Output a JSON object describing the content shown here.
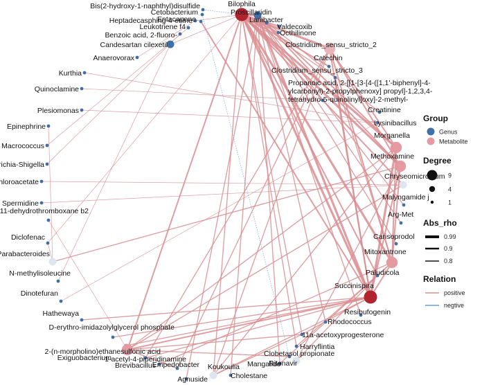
{
  "colors": {
    "genus": "#3f6fa6",
    "metabolite": "#e49aa0",
    "positive": "#d98d90",
    "negative": "#6a9bd0",
    "hub_dark": "#b0242e",
    "hub_light": "#dde5f0",
    "mid_pink": "#e8b6b8"
  },
  "legend": {
    "group_title": "Group",
    "group_items": [
      "Genus",
      "Metabolite"
    ],
    "degree_title": "Degree",
    "degree_items": [
      "9",
      "4",
      "1"
    ],
    "absrho_title": "Abs_rho",
    "absrho_items": [
      "0.99",
      "0.9",
      "0.8"
    ],
    "relation_title": "Relation",
    "relation_items": [
      "positive",
      "negtive"
    ]
  },
  "nodes": [
    {
      "id": "bilophila",
      "label": "Bilophila",
      "group": "Genus",
      "degree": 9,
      "shade": "hub_dark"
    },
    {
      "id": "bis2",
      "label": "Bis(2-hydroxy-1-naphthyl)disulfide",
      "group": "Metabolite",
      "degree": 1
    },
    {
      "id": "cetobacterium",
      "label": "Cetobacterium",
      "group": "Genus",
      "degree": 1
    },
    {
      "id": "proscillaridin",
      "label": "Proscillaridin",
      "group": "Metabolite",
      "degree": 2
    },
    {
      "id": "entacapone",
      "label": "Entacapone",
      "group": "Metabolite",
      "degree": 1
    },
    {
      "id": "heptadec",
      "label": "Heptadecasphing-4-enine",
      "group": "Metabolite",
      "degree": 1
    },
    {
      "id": "lariibacter",
      "label": "Lariibacter",
      "group": "Genus",
      "degree": 1
    },
    {
      "id": "leukotriene",
      "label": "Leukotriene f4",
      "group": "Metabolite",
      "degree": 1
    },
    {
      "id": "valdecoxib",
      "label": "Valdecoxib",
      "group": "Metabolite",
      "degree": 1
    },
    {
      "id": "benzoic",
      "label": "Benzoic acid, 2-fluoro-",
      "group": "Metabolite",
      "degree": 1
    },
    {
      "id": "octhilinone",
      "label": "Octhilinone",
      "group": "Metabolite",
      "degree": 1
    },
    {
      "id": "candesartan",
      "label": "Candesartan cilexetil",
      "group": "Metabolite",
      "degree": 2
    },
    {
      "id": "anaerovorax",
      "label": "Anaerovorax",
      "group": "Genus",
      "degree": 1
    },
    {
      "id": "clos2",
      "label": "Clostridium_sensu_stricto_2",
      "group": "Genus",
      "degree": 4,
      "shade": "mid_pink"
    },
    {
      "id": "kurthia",
      "label": "Kurthia",
      "group": "Genus",
      "degree": 1
    },
    {
      "id": "catechin",
      "label": "Catechin",
      "group": "Metabolite",
      "degree": 1
    },
    {
      "id": "clos3",
      "label": "Clostridium_sensu_stricto_3",
      "group": "Genus",
      "degree": 1
    },
    {
      "id": "quinoclamine",
      "label": "Quinoclamine",
      "group": "Metabolite",
      "degree": 1
    },
    {
      "id": "propanoic",
      "label": "Propanoic acid, 2-[[1-[3-[4-([1,1'-biphenyl]-4-\nylcarbonyl)-2-propylphenoxy] propyl]-1,2,3,4-\ntetrahydro-5-quinolinyl]oxy]-2-methyl-",
      "group": "Metabolite",
      "degree": 1
    },
    {
      "id": "plesiomonas",
      "label": "Plesiomonas",
      "group": "Genus",
      "degree": 1
    },
    {
      "id": "creatinine",
      "label": "Creatinine",
      "group": "Metabolite",
      "degree": 1
    },
    {
      "id": "epinephrine",
      "label": "Epinephrine",
      "group": "Metabolite",
      "degree": 1
    },
    {
      "id": "lysinibacillus",
      "label": "Lysinibacillus",
      "group": "Genus",
      "degree": 1
    },
    {
      "id": "macrococcus",
      "label": "Macrococcus",
      "group": "Genus",
      "degree": 1
    },
    {
      "id": "morganella",
      "label": "Morganella",
      "group": "Genus",
      "degree": 5
    },
    {
      "id": "escherichia",
      "label": "Escherichia-Shigella",
      "group": "Genus",
      "degree": 1
    },
    {
      "id": "methoxamine",
      "label": "Methoxamine",
      "group": "Metabolite",
      "degree": 5
    },
    {
      "id": "dichloroacetate",
      "label": "Dichloroacetate",
      "group": "Metabolite",
      "degree": 1
    },
    {
      "id": "chryseo",
      "label": "Chryseomicrobium",
      "group": "Genus",
      "degree": 3,
      "shade": "hub_light"
    },
    {
      "id": "spermidine",
      "label": "Spermidine",
      "group": "Metabolite",
      "degree": 1
    },
    {
      "id": "malyngamide",
      "label": "Malyngamide j",
      "group": "Metabolite",
      "degree": 1
    },
    {
      "id": "dehydro",
      "label": "11-dehydrothromboxane b2",
      "group": "Metabolite",
      "degree": 1
    },
    {
      "id": "argmet",
      "label": "Arg-Met",
      "group": "Metabolite",
      "degree": 1
    },
    {
      "id": "diclofenac",
      "label": "Diclofenac",
      "group": "Metabolite",
      "degree": 1
    },
    {
      "id": "carisoprodol",
      "label": "Carisoprodol",
      "group": "Metabolite",
      "degree": 1
    },
    {
      "id": "parabacteroides",
      "label": "Parabacteroides",
      "group": "Genus",
      "degree": 3,
      "shade": "hub_light"
    },
    {
      "id": "mitoxantrone",
      "label": "Mitoxantrone",
      "group": "Metabolite",
      "degree": 5
    },
    {
      "id": "nmethyl",
      "label": "N-methylisoleucine",
      "group": "Metabolite",
      "degree": 1
    },
    {
      "id": "paludicola",
      "label": "Paludicola",
      "group": "Genus",
      "degree": 1
    },
    {
      "id": "dinoterfuran",
      "label": "Dinotefuran",
      "group": "Metabolite",
      "degree": 1
    },
    {
      "id": "succinispira",
      "label": "Succinispira",
      "group": "Genus",
      "degree": 9,
      "shade": "hub_dark"
    },
    {
      "id": "hathewaya",
      "label": "Hathewaya",
      "group": "Genus",
      "degree": 1
    },
    {
      "id": "resibufogenin",
      "label": "Resibufogenin",
      "group": "Metabolite",
      "degree": 1
    },
    {
      "id": "derythro",
      "label": "D-erythro-imidazolylglycerol phosphate",
      "group": "Metabolite",
      "degree": 1
    },
    {
      "id": "rhodococcus",
      "label": "Rhodococcus",
      "group": "Genus",
      "degree": 1
    },
    {
      "id": "morpholino",
      "label": "2-(n-morpholino)ethanesulfonic acid",
      "group": "Metabolite",
      "degree": 1
    },
    {
      "id": "acetoxyprog",
      "label": "11a-acetoxyprogesterone",
      "group": "Metabolite",
      "degree": 1
    },
    {
      "id": "exiguobacterium",
      "label": "Exiguobacterium",
      "group": "Genus",
      "degree": 4
    },
    {
      "id": "harryflintia",
      "label": "Harryflintia",
      "group": "Genus",
      "degree": 1
    },
    {
      "id": "brevibacillus",
      "label": "Brevibacillus",
      "group": "Genus",
      "degree": 1
    },
    {
      "id": "clobetasol",
      "label": "Clobetasol propionate",
      "group": "Metabolite",
      "degree": 1
    },
    {
      "id": "acetylpip",
      "label": "1-acetyl-4-piperidinamine",
      "group": "Metabolite",
      "degree": 1
    },
    {
      "id": "ritonavir",
      "label": "Ritonavir",
      "group": "Metabolite",
      "degree": 2,
      "shade": "hub_light"
    },
    {
      "id": "empedobacter",
      "label": "Empedobacter",
      "group": "Genus",
      "degree": 1
    },
    {
      "id": "mangalide",
      "label": "Mangalide",
      "group": "Metabolite",
      "degree": 1
    },
    {
      "id": "koukoulia",
      "label": "Koukoulia",
      "group": "Genus",
      "degree": 2,
      "shade": "hub_light"
    },
    {
      "id": "cholestane",
      "label": "Cholestane",
      "group": "Metabolite",
      "degree": 1
    },
    {
      "id": "agnuside",
      "label": "Agnuside",
      "group": "Metabolite",
      "degree": 1
    }
  ],
  "edges": [
    {
      "s": "bilophila",
      "t": "proscillaridin",
      "w": 0.99,
      "rel": "positive"
    },
    {
      "s": "bilophila",
      "t": "lariibacter",
      "w": 0.9,
      "rel": "positive"
    },
    {
      "s": "bilophila",
      "t": "valdecoxib",
      "w": 0.9,
      "rel": "positive"
    },
    {
      "s": "bilophila",
      "t": "octhilinone",
      "w": 0.85,
      "rel": "positive"
    },
    {
      "s": "bilophila",
      "t": "clos2",
      "w": 0.99,
      "rel": "positive"
    },
    {
      "s": "bilophila",
      "t": "catechin",
      "w": 0.9,
      "rel": "positive"
    },
    {
      "s": "bilophila",
      "t": "clos3",
      "w": 0.85,
      "rel": "positive"
    },
    {
      "s": "bilophila",
      "t": "morganella",
      "w": 0.99,
      "rel": "positive"
    },
    {
      "s": "bilophila",
      "t": "methoxamine",
      "w": 0.99,
      "rel": "positive"
    },
    {
      "s": "bilophila",
      "t": "mitoxantrone",
      "w": 0.99,
      "rel": "positive"
    },
    {
      "s": "bilophila",
      "t": "succinispira",
      "w": 0.99,
      "rel": "positive"
    },
    {
      "s": "bilophila",
      "t": "chryseo",
      "w": 0.9,
      "rel": "positive"
    },
    {
      "s": "bilophila",
      "t": "paludicola",
      "w": 0.9,
      "rel": "positive"
    },
    {
      "s": "bilophila",
      "t": "exiguobacterium",
      "w": 0.9,
      "rel": "positive"
    },
    {
      "s": "bilophila",
      "t": "acetoxyprog",
      "w": 0.85,
      "rel": "positive"
    },
    {
      "s": "bilophila",
      "t": "koukoulia",
      "w": 0.85,
      "rel": "positive"
    },
    {
      "s": "bilophila",
      "t": "harryflintia",
      "w": 0.85,
      "rel": "positive"
    },
    {
      "s": "bilophila",
      "t": "candesartan",
      "w": 0.8,
      "rel": "positive"
    },
    {
      "s": "bilophila",
      "t": "heptadec",
      "w": 0.8,
      "rel": "positive"
    },
    {
      "s": "bilophila",
      "t": "bis2",
      "w": 0.8,
      "rel": "negative"
    },
    {
      "s": "bilophila",
      "t": "diclofenac",
      "w": 0.8,
      "rel": "positive"
    },
    {
      "s": "proscillaridin",
      "t": "succinispira",
      "w": 0.99,
      "rel": "positive"
    },
    {
      "s": "proscillaridin",
      "t": "methoxamine",
      "w": 0.9,
      "rel": "positive"
    },
    {
      "s": "proscillaridin",
      "t": "morganella",
      "w": 0.9,
      "rel": "positive"
    },
    {
      "s": "proscillaridin",
      "t": "creatinine",
      "w": 0.85,
      "rel": "positive"
    },
    {
      "s": "proscillaridin",
      "t": "malyngamide",
      "w": 0.85,
      "rel": "positive"
    },
    {
      "s": "proscillaridin",
      "t": "carisoprodol",
      "w": 0.85,
      "rel": "positive"
    },
    {
      "s": "proscillaridin",
      "t": "argmet",
      "w": 0.85,
      "rel": "positive"
    },
    {
      "s": "proscillaridin",
      "t": "resibufogenin",
      "w": 0.85,
      "rel": "positive"
    },
    {
      "s": "proscillaridin",
      "t": "rhodococcus",
      "w": 0.85,
      "rel": "positive"
    },
    {
      "s": "proscillaridin",
      "t": "mangalide",
      "w": 0.85,
      "rel": "positive"
    },
    {
      "s": "proscillaridin",
      "t": "agnuside",
      "w": 0.85,
      "rel": "positive"
    },
    {
      "s": "proscillaridin",
      "t": "cholestane",
      "w": 0.85,
      "rel": "positive"
    },
    {
      "s": "cetobacterium",
      "t": "clobetasol",
      "w": 0.8,
      "rel": "negative"
    },
    {
      "s": "clos2",
      "t": "morganella",
      "w": 0.9,
      "rel": "positive"
    },
    {
      "s": "clos2",
      "t": "methoxamine",
      "w": 0.9,
      "rel": "positive"
    },
    {
      "s": "clos2",
      "t": "mitoxantrone",
      "w": 0.9,
      "rel": "positive"
    },
    {
      "s": "clos2",
      "t": "succinispira",
      "w": 0.9,
      "rel": "positive"
    },
    {
      "s": "clos2",
      "t": "koukoulia",
      "w": 0.85,
      "rel": "positive"
    },
    {
      "s": "clos2",
      "t": "empedobacter",
      "w": 0.85,
      "rel": "positive"
    },
    {
      "s": "clos2",
      "t": "brevibacillus",
      "w": 0.85,
      "rel": "positive"
    },
    {
      "s": "clos3",
      "t": "succinispira",
      "w": 0.9,
      "rel": "positive"
    },
    {
      "s": "clos3",
      "t": "mitoxantrone",
      "w": 0.85,
      "rel": "positive"
    },
    {
      "s": "morganella",
      "t": "succinispira",
      "w": 0.99,
      "rel": "positive"
    },
    {
      "s": "morganella",
      "t": "mitoxantrone",
      "w": 0.9,
      "rel": "positive"
    },
    {
      "s": "morganella",
      "t": "koukoulia",
      "w": 0.85,
      "rel": "positive"
    },
    {
      "s": "morganella",
      "t": "exiguobacterium",
      "w": 0.85,
      "rel": "positive"
    },
    {
      "s": "methoxamine",
      "t": "succinispira",
      "w": 0.9,
      "rel": "positive"
    },
    {
      "s": "methoxamine",
      "t": "mitoxantrone",
      "w": 0.9,
      "rel": "positive"
    },
    {
      "s": "methoxamine",
      "t": "ritonavir",
      "w": 0.85,
      "rel": "positive"
    },
    {
      "s": "methoxamine",
      "t": "parabacteroides",
      "w": 0.85,
      "rel": "positive"
    },
    {
      "s": "mitoxantrone",
      "t": "succinispira",
      "w": 0.9,
      "rel": "positive"
    },
    {
      "s": "mitoxantrone",
      "t": "acetylpip",
      "w": 0.85,
      "rel": "positive"
    },
    {
      "s": "mitoxantrone",
      "t": "harryflintia",
      "w": 0.85,
      "rel": "positive"
    },
    {
      "s": "mitoxantrone",
      "t": "mangalide",
      "w": 0.85,
      "rel": "positive"
    },
    {
      "s": "succinispira",
      "t": "exiguobacterium",
      "w": 0.9,
      "rel": "positive"
    },
    {
      "s": "succinispira",
      "t": "brevibacillus",
      "w": 0.85,
      "rel": "positive"
    },
    {
      "s": "succinispira",
      "t": "morpholino",
      "w": 0.85,
      "rel": "positive"
    },
    {
      "s": "succinispira",
      "t": "derythro",
      "w": 0.85,
      "rel": "positive"
    },
    {
      "s": "succinispira",
      "t": "hathewaya",
      "w": 0.85,
      "rel": "positive"
    },
    {
      "s": "succinispira",
      "t": "koukoulia",
      "w": 0.85,
      "rel": "positive"
    },
    {
      "s": "succinispira",
      "t": "acetoxyprog",
      "w": 0.85,
      "rel": "positive"
    },
    {
      "s": "exiguobacterium",
      "t": "empedobacter",
      "w": 0.85,
      "rel": "positive"
    },
    {
      "s": "exiguobacterium",
      "t": "acetoxyprog",
      "w": 0.85,
      "rel": "positive"
    },
    {
      "s": "exiguobacterium",
      "t": "clobetasol",
      "w": 0.85,
      "rel": "positive"
    },
    {
      "s": "exiguobacterium",
      "t": "dehydro",
      "w": 0.8,
      "rel": "positive"
    },
    {
      "s": "propanoic",
      "t": "quinoclamine",
      "w": 0.8,
      "rel": "positive"
    },
    {
      "s": "chryseo",
      "t": "dichloroacetate",
      "w": 0.8,
      "rel": "positive"
    },
    {
      "s": "chryseo",
      "t": "spermidine",
      "w": 0.8,
      "rel": "positive"
    },
    {
      "s": "chryseo",
      "t": "exiguobacterium",
      "w": 0.85,
      "rel": "positive"
    },
    {
      "s": "parabacteroides",
      "t": "epinephrine",
      "w": 0.8,
      "rel": "positive"
    },
    {
      "s": "parabacteroides",
      "t": "diclofenac",
      "w": 0.8,
      "rel": "positive"
    },
    {
      "s": "lysinibacillus",
      "t": "dinoterfuran",
      "w": 0.8,
      "rel": "positive"
    },
    {
      "s": "lysinibacillus",
      "t": "plesiomonas",
      "w": 0.8,
      "rel": "positive"
    },
    {
      "s": "lysinibacillus",
      "t": "kurthia",
      "w": 0.8,
      "rel": "positive"
    },
    {
      "s": "candesartan",
      "t": "nmethyl",
      "w": 0.8,
      "rel": "positive"
    },
    {
      "s": "benzoic",
      "t": "escherichia",
      "w": 0.8,
      "rel": "positive"
    },
    {
      "s": "leukotriene",
      "t": "macrococcus",
      "w": 0.8,
      "rel": "positive"
    },
    {
      "s": "heptadec",
      "t": "anaerovorax",
      "w": 0.8,
      "rel": "positive"
    },
    {
      "s": "entacapone",
      "t": "succinispira",
      "w": 0.9,
      "rel": "positive"
    },
    {
      "s": "ritonavir",
      "t": "paludicola",
      "w": 0.85,
      "rel": "positive"
    },
    {
      "s": "koukoulia",
      "t": "acetoxyprog",
      "w": 0.85,
      "rel": "positive"
    }
  ]
}
